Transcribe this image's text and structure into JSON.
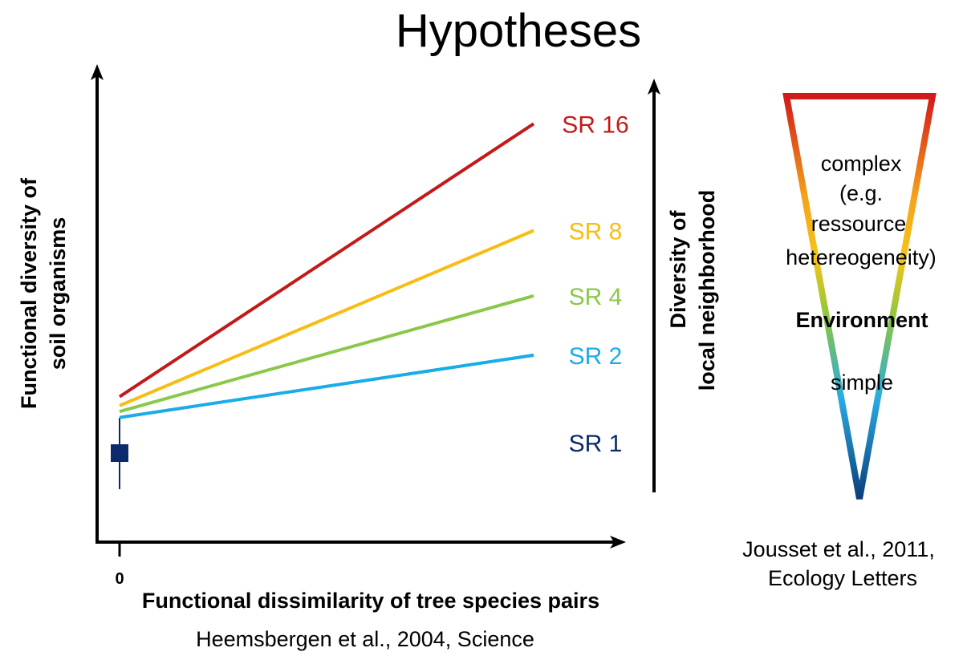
{
  "title": "Hypotheses",
  "chart_data": {
    "type": "line",
    "xlabel": "Functional dissimilarity of tree species pairs",
    "ylabel_line1": "Functional diversity of",
    "ylabel_line2": "soil organisms",
    "x_tick": "0",
    "citation": "Heemsbergen et al., 2004,  Science",
    "series": [
      {
        "name": "SR 1",
        "color": "#0a2a6b",
        "marker": "square",
        "start": 0.3,
        "end": null
      },
      {
        "name": "SR  2",
        "color": "#1aace8",
        "start": 0.42,
        "end": 0.63
      },
      {
        "name": "SR  4",
        "color": "#8ac84a",
        "start": 0.44,
        "end": 0.83
      },
      {
        "name": "SR  8",
        "color": "#f7bd12",
        "start": 0.46,
        "end": 1.05
      },
      {
        "name": "SR 16",
        "color": "#c21a1a",
        "start": 0.49,
        "end": 1.41
      }
    ]
  },
  "side_axis": {
    "label_line1": "Diversity of",
    "label_line2": "local neighborhood"
  },
  "environment": {
    "complex_lines": [
      "complex",
      "(e.g.",
      "ressource",
      "hetereogeneity)"
    ],
    "label": "Environment",
    "simple": "simple",
    "citation_line1": "Jousset et al., 2011,",
    "citation_line2": "Ecology Letters",
    "gradient_colors": [
      "#d11a1a",
      "#f4a21a",
      "#f5c518",
      "#8cc63f",
      "#29abe2",
      "#0b3e7a"
    ]
  }
}
